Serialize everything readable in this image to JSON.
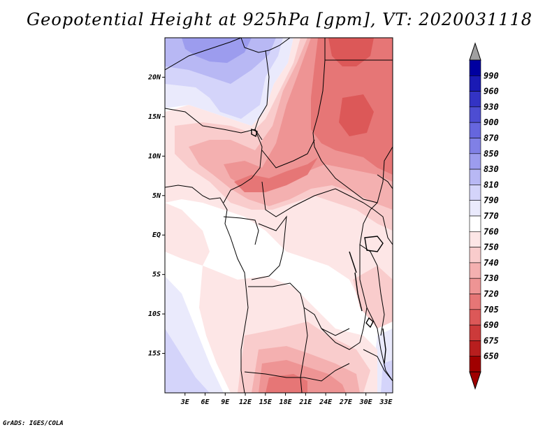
{
  "title": "Geopotential Height at 925hPa [gpm], VT: 2020031118",
  "credit": "GrADS: IGES/COLA",
  "map": {
    "region": "Central Africa",
    "lon_range": [
      0,
      34
    ],
    "lat_range": [
      -20,
      25
    ],
    "lat_ticks": [
      {
        "value": 20,
        "label": "20N"
      },
      {
        "value": 15,
        "label": "15N"
      },
      {
        "value": 10,
        "label": "10N"
      },
      {
        "value": 5,
        "label": "5N"
      },
      {
        "value": 0,
        "label": "EQ"
      },
      {
        "value": -5,
        "label": "5S"
      },
      {
        "value": -10,
        "label": "10S"
      },
      {
        "value": -15,
        "label": "15S"
      }
    ],
    "lon_ticks": [
      {
        "value": 3,
        "label": "3E"
      },
      {
        "value": 6,
        "label": "6E"
      },
      {
        "value": 9,
        "label": "9E"
      },
      {
        "value": 12,
        "label": "12E"
      },
      {
        "value": 15,
        "label": "15E"
      },
      {
        "value": 18,
        "label": "18E"
      },
      {
        "value": 21,
        "label": "21E"
      },
      {
        "value": 24,
        "label": "24E"
      },
      {
        "value": 27,
        "label": "27E"
      },
      {
        "value": 30,
        "label": "30E"
      },
      {
        "value": 33,
        "label": "33E"
      }
    ]
  },
  "colorbar": {
    "labels": [
      "990",
      "960",
      "930",
      "900",
      "870",
      "850",
      "830",
      "810",
      "790",
      "770",
      "760",
      "750",
      "740",
      "730",
      "720",
      "705",
      "690",
      "675",
      "650"
    ],
    "colors": [
      "#0000a0",
      "#1a1ab4",
      "#3333c4",
      "#4d4dd2",
      "#6666de",
      "#8080e6",
      "#9c9cee",
      "#b8b8f4",
      "#d4d4fa",
      "#eaeafc",
      "#ffffff",
      "#fde6e6",
      "#f9cccc",
      "#f4b0b0",
      "#ee9494",
      "#e67676",
      "#dc5858",
      "#cc3a3a",
      "#b81e1e",
      "#a00000"
    ],
    "over_color": "#a0a0a0",
    "under_color": "#a00000"
  },
  "field_colors": {
    "deep_blue": "#9c9cee",
    "mid_blue": "#b8b8f4",
    "light_blue": "#d4d4fa",
    "pale_blue": "#eaeafc",
    "white": "#ffffff",
    "pale_pink": "#fde6e6",
    "light_pink": "#f9cccc",
    "pink": "#f4b0b0",
    "salmon": "#ee9494",
    "red": "#e67676",
    "dark_red": "#dc5858"
  }
}
